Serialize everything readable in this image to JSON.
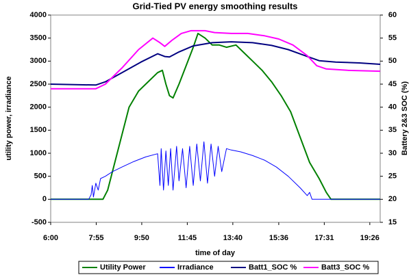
{
  "chart_data": {
    "type": "line",
    "title": "Grid-Tied PV energy smoothing results",
    "xlabel": "time of day",
    "ylabel": "utility power, irradiance",
    "y2label": "Battery 2&3 SOC (%)",
    "xlim": [
      6,
      19.87
    ],
    "xticks": [
      {
        "value": 6,
        "label": "6:00"
      },
      {
        "value": 7.9167,
        "label": "7:55"
      },
      {
        "value": 9.8333,
        "label": "9:50"
      },
      {
        "value": 11.75,
        "label": "11:45"
      },
      {
        "value": 13.6667,
        "label": "13:40"
      },
      {
        "value": 15.6,
        "label": "15:36"
      },
      {
        "value": 17.5167,
        "label": "17:31"
      },
      {
        "value": 19.4333,
        "label": "19:26"
      }
    ],
    "ylim": [
      -500,
      4000
    ],
    "yticks": [
      -500,
      0,
      500,
      1000,
      1500,
      2000,
      2500,
      3000,
      3500,
      4000
    ],
    "y2lim": [
      15,
      60
    ],
    "y2ticks": [
      15,
      20,
      25,
      30,
      35,
      40,
      45,
      50,
      55,
      60
    ],
    "grid": false,
    "legend": "bottom",
    "series": [
      {
        "name": "Utility Power",
        "color": "#008000",
        "x": [
          6,
          8.2,
          8.4,
          8.7,
          9.0,
          9.3,
          9.7,
          10.1,
          10.5,
          10.7,
          10.85,
          11.0,
          11.15,
          11.4,
          11.7,
          12.0,
          12.2,
          12.5,
          12.8,
          13.1,
          13.4,
          13.8,
          14.1,
          14.5,
          14.9,
          15.3,
          15.7,
          16.1,
          16.5,
          16.9,
          17.3,
          17.6,
          17.8,
          19.87
        ],
        "values": [
          0,
          0,
          200,
          800,
          1400,
          2000,
          2350,
          2550,
          2750,
          2800,
          2500,
          2250,
          2200,
          2500,
          2900,
          3300,
          3600,
          3500,
          3350,
          3350,
          3300,
          3350,
          3200,
          3000,
          2800,
          2550,
          2250,
          1900,
          1350,
          800,
          450,
          150,
          0,
          0
        ]
      },
      {
        "name": "Irradiance",
        "color": "#0000ff",
        "x": [
          6,
          7.6,
          7.7,
          7.75,
          7.8,
          7.9,
          8.0,
          8.1,
          8.3,
          8.6,
          9.0,
          9.5,
          10.0,
          10.5,
          10.6,
          10.65,
          10.75,
          10.85,
          10.95,
          11.05,
          11.15,
          11.3,
          11.4,
          11.55,
          11.7,
          11.85,
          12.0,
          12.15,
          12.3,
          12.45,
          12.6,
          12.75,
          12.9,
          13.05,
          13.2,
          13.4,
          13.6,
          14.0,
          14.5,
          15.0,
          15.5,
          16.0,
          16.5,
          16.8,
          16.9,
          17.0,
          19.87
        ],
        "values": [
          0,
          0,
          100,
          300,
          50,
          350,
          200,
          450,
          500,
          600,
          700,
          820,
          920,
          990,
          300,
          1100,
          200,
          1050,
          300,
          1100,
          200,
          1150,
          400,
          1100,
          250,
          1150,
          300,
          1200,
          400,
          1250,
          350,
          1200,
          500,
          1150,
          600,
          1100,
          1070,
          1030,
          950,
          850,
          700,
          500,
          250,
          80,
          150,
          0,
          0
        ]
      },
      {
        "name": "Batt1_SOC %",
        "color": "#000080",
        "axis": "y2",
        "x": [
          6,
          7.9,
          8.3,
          9.0,
          9.8,
          10.5,
          10.8,
          11.0,
          11.4,
          12.0,
          12.8,
          13.6,
          14.5,
          15.3,
          16.0,
          16.7,
          17.3,
          18.0,
          19.0,
          19.87
        ],
        "values": [
          45,
          44.8,
          45.5,
          47.5,
          49.8,
          51.6,
          51,
          50.9,
          52,
          53.3,
          54,
          54.2,
          54,
          53.4,
          52.5,
          51.2,
          50.1,
          49.8,
          49.6,
          49.3
        ]
      },
      {
        "name": "Batt3_SOC %",
        "color": "#ff00ff",
        "axis": "y2",
        "x": [
          6,
          7.9,
          8.3,
          9.0,
          9.7,
          10.3,
          10.6,
          10.8,
          11.1,
          11.5,
          11.9,
          12.5,
          12.9,
          13.6,
          14.3,
          15.0,
          15.6,
          16.2,
          16.8,
          17.2,
          17.6,
          18.5,
          19.87
        ],
        "values": [
          44,
          44,
          45,
          48.5,
          52.5,
          55,
          54,
          53.2,
          54.5,
          56,
          56.6,
          56.6,
          56.2,
          56,
          56,
          55.5,
          54.8,
          53.5,
          51.2,
          49,
          48.3,
          48,
          47.8
        ]
      }
    ]
  }
}
